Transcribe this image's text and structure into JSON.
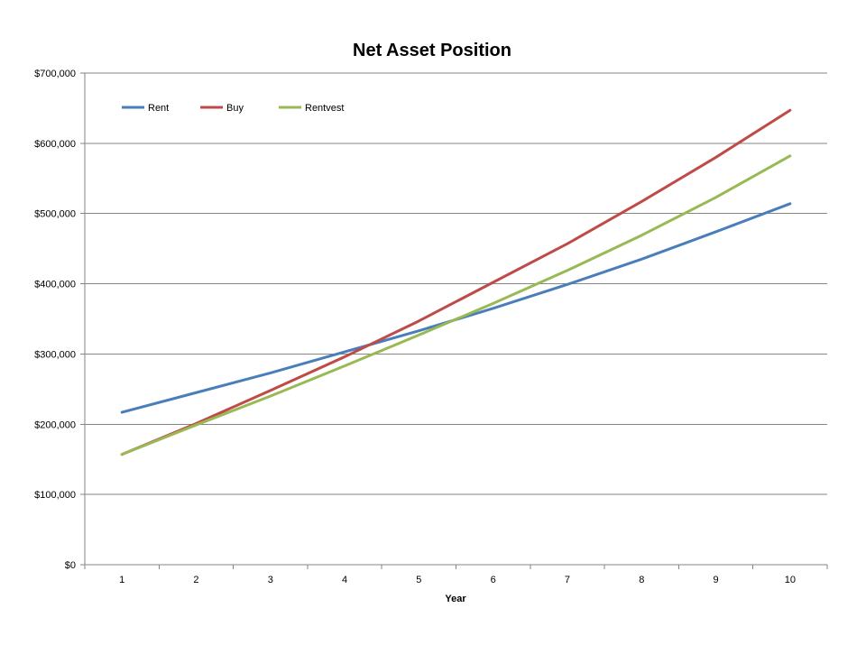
{
  "chart_data": {
    "type": "line",
    "title": "Net Asset Position",
    "xlabel": "Year",
    "ylabel": "",
    "x": [
      1,
      2,
      3,
      4,
      5,
      6,
      7,
      8,
      9,
      10
    ],
    "x_tick_labels": [
      "1",
      "2",
      "3",
      "4",
      "5",
      "6",
      "7",
      "8",
      "9",
      "10"
    ],
    "ylim": [
      0,
      700000
    ],
    "y_ticks": [
      0,
      100000,
      200000,
      300000,
      400000,
      500000,
      600000,
      700000
    ],
    "y_tick_labels": [
      "$0",
      "$100,000",
      "$200,000",
      "$300,000",
      "$400,000",
      "$500,000",
      "$600,000",
      "$700,000"
    ],
    "grid": "horizontal",
    "legend_position": "top-left",
    "series": [
      {
        "name": "Rent",
        "color": "#4a7ebb",
        "values": [
          217000,
          245000,
          273000,
          303000,
          333000,
          365000,
          399000,
          435000,
          474000,
          514000
        ]
      },
      {
        "name": "Buy",
        "color": "#be4b48",
        "values": [
          157000,
          201000,
          248000,
          296000,
          347000,
          402000,
          457000,
          517000,
          580000,
          647000
        ]
      },
      {
        "name": "Rentvest",
        "color": "#98b954",
        "values": [
          157000,
          199000,
          240000,
          283000,
          327000,
          372000,
          419000,
          469000,
          523000,
          582000
        ]
      }
    ]
  }
}
